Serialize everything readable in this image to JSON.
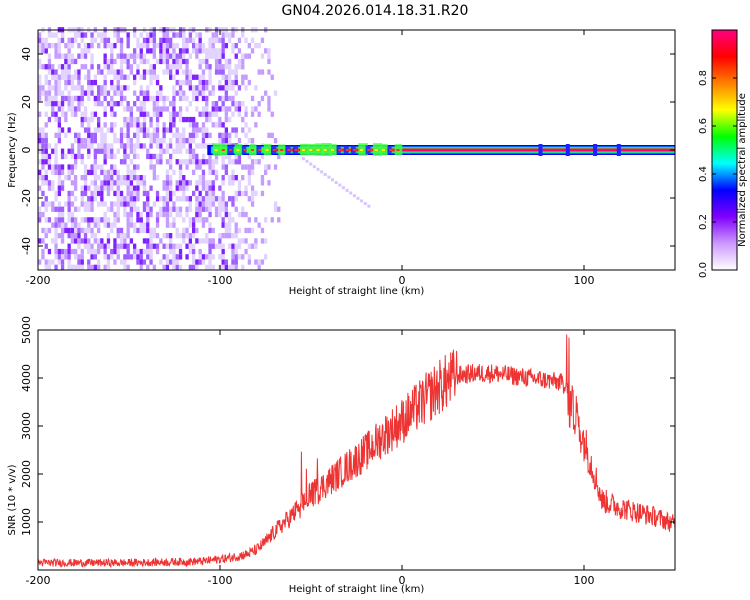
{
  "title": "GN04.2026.014.18.31.R20",
  "chart_data": [
    {
      "type": "heatmap",
      "title": "GN04.2026.014.18.31.R20",
      "xlabel": "Height of straight line (km)",
      "ylabel": "Frequency (Hz)",
      "xlim": [
        -200,
        150
      ],
      "ylim": [
        -50,
        50
      ],
      "xticks": [
        -200,
        -100,
        0,
        100
      ],
      "yticks": [
        -40,
        -20,
        0,
        20,
        40
      ],
      "colorbar": {
        "label": "Normalized spectral amplitude",
        "range": [
          0,
          1
        ],
        "ticks": [
          "0.0",
          "0.2",
          "0.4",
          "0.6",
          "0.8"
        ],
        "colors": [
          "#ffffff",
          "#cc99ff",
          "#7f00ff",
          "#0000ff",
          "#00ffff",
          "#00ff00",
          "#ffff00",
          "#ff8000",
          "#ff0000",
          "#ff0080"
        ]
      },
      "features": {
        "noise_region_x": [
          -200,
          -75
        ],
        "signal_line": {
          "x_start": -107,
          "x_end": 150,
          "frequency": 0,
          "peak_amplitude": 1.0
        }
      }
    },
    {
      "type": "line",
      "xlabel": "Height of straight line (km)",
      "ylabel": "SNR (10 * v/v)",
      "xlim": [
        -200,
        150
      ],
      "ylim": [
        0,
        5000
      ],
      "xticks": [
        -200,
        -100,
        0,
        100
      ],
      "yticks": [
        1000,
        2000,
        3000,
        4000,
        5000
      ],
      "color": "#ee3333",
      "series": [
        {
          "name": "SNR",
          "x": [
            -200,
            -150,
            -110,
            -95,
            -85,
            -80,
            -75,
            -70,
            -60,
            -50,
            -40,
            -30,
            -20,
            -10,
            0,
            10,
            20,
            30,
            40,
            50,
            60,
            70,
            80,
            88,
            95,
            100,
            105,
            110,
            120,
            130,
            140,
            150
          ],
          "values": [
            150,
            150,
            180,
            250,
            330,
            420,
            580,
            800,
            1150,
            1550,
            1850,
            2150,
            2450,
            2800,
            3100,
            3450,
            3800,
            4050,
            4100,
            4100,
            4050,
            4000,
            3950,
            3900,
            3200,
            2700,
            2100,
            1450,
            1300,
            1200,
            1100,
            950
          ]
        }
      ]
    }
  ]
}
